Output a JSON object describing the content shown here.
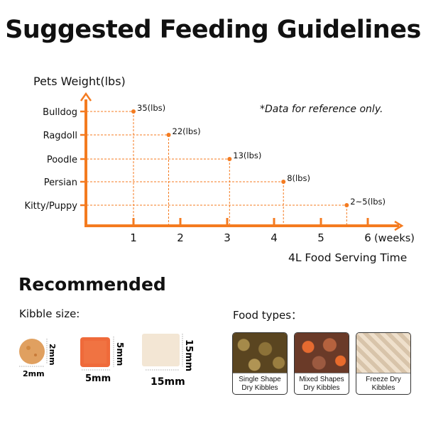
{
  "title": "Suggested Feeding Guidelines",
  "chart_data": {
    "type": "scatter",
    "ylabel": "Pets Weight(lbs)",
    "xlabel": "4L Food Serving Time",
    "x_unit": "(weeks)",
    "x_ticks": [
      "1",
      "2",
      "3",
      "4",
      "5",
      "6"
    ],
    "xlim": [
      0,
      6.5
    ],
    "note": "*Data for reference only.",
    "color": "#f47b20",
    "points": [
      {
        "category": "Bulldog",
        "weeks": 1.0,
        "label": "35(lbs)"
      },
      {
        "category": "Ragdoll",
        "weeks": 1.75,
        "label": "22(lbs)"
      },
      {
        "category": "Poodle",
        "weeks": 3.05,
        "label": "13(lbs)"
      },
      {
        "category": "Persian",
        "weeks": 4.2,
        "label": "8(lbs)"
      },
      {
        "category": "Kitty/Puppy",
        "weeks": 5.55,
        "label": "2~5(lbs)"
      }
    ]
  },
  "recommended": {
    "heading": "Recommended",
    "kibble_heading": "Kibble size:",
    "kibbles": [
      {
        "width": "2mm",
        "height": "2mm"
      },
      {
        "width": "5mm",
        "height": "5mm"
      },
      {
        "width": "15mm",
        "height": "15mm"
      }
    ],
    "food_heading": "Food types：",
    "food_types": [
      {
        "line1": "Single Shape",
        "line2": "Dry Kibbles"
      },
      {
        "line1": "Mixed Shapes",
        "line2": "Dry Kibbles"
      },
      {
        "line1": "Freeze Dry",
        "line2": "Kibbles"
      }
    ]
  }
}
